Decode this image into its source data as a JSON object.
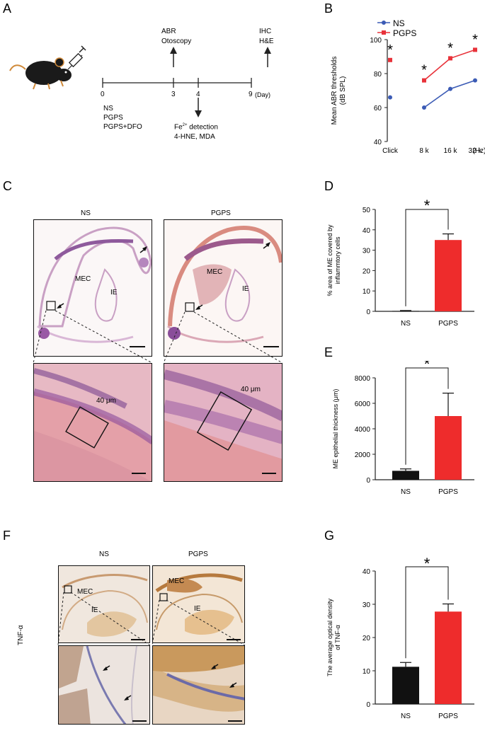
{
  "panels": {
    "A": "A",
    "B": "B",
    "C": "C",
    "D": "D",
    "E": "E",
    "F": "F",
    "G": "G"
  },
  "panel_a": {
    "top_labels": [
      {
        "lines": [
          "ABR",
          "Otoscopy"
        ]
      },
      {
        "lines": [
          "IHC",
          "H&E"
        ]
      }
    ],
    "ticks": [
      "0",
      "3",
      "4",
      "9"
    ],
    "day_unit": "(Day)",
    "groups": [
      "NS",
      "PGPS",
      "PGPS+DFO"
    ],
    "fe_label": "Fe",
    "fe_sup": "2+",
    "fe_rest": " detection",
    "markers": "4-HNE, MDA"
  },
  "panel_c": {
    "ns_title": "NS",
    "pgps_title": "PGPS",
    "mec": "MEC",
    "ie": "IE",
    "scale": "40 μm"
  },
  "panel_f": {
    "ns_title": "NS",
    "pgps_title": "PGPS",
    "mec": "MEC",
    "ie": "IE",
    "side_label": "TNF-α"
  },
  "chart_data": [
    {
      "id": "B",
      "type": "line",
      "categories": [
        "Click",
        "8 k",
        "16 k",
        "32 k"
      ],
      "x_unit": "(Hz)",
      "ylabel_lines": [
        "Mean ABR thresholds",
        "(dB SPL)"
      ],
      "ylim": [
        40,
        100
      ],
      "yticks": [
        "40",
        "60",
        "80",
        "100"
      ],
      "legend_position": "top-left",
      "series": [
        {
          "name": "NS",
          "color": "#3b5bb5",
          "values": [
            66,
            60,
            71,
            76
          ]
        },
        {
          "name": "PGPS",
          "color": "#e8323a",
          "values": [
            88,
            76,
            89,
            94
          ]
        }
      ],
      "line_segments_from_index": 1,
      "significance": [
        "*",
        "*",
        "*",
        "*"
      ]
    },
    {
      "id": "D",
      "type": "bar",
      "categories": [
        "NS",
        "PGPS"
      ],
      "values": [
        0.2,
        35
      ],
      "errors": [
        0.2,
        3
      ],
      "colors": [
        "#111111",
        "#ee2c2c"
      ],
      "ylabel_lines": [
        "% area of ME covered by",
        "inflammtory cells"
      ],
      "ylim": [
        0,
        50
      ],
      "yticks": [
        "0",
        "10",
        "20",
        "30",
        "40",
        "50"
      ],
      "significance": "*"
    },
    {
      "id": "E",
      "type": "bar",
      "categories": [
        "NS",
        "PGPS"
      ],
      "values": [
        700,
        5000
      ],
      "errors": [
        150,
        1800
      ],
      "colors": [
        "#111111",
        "#ee2c2c"
      ],
      "ylabel_lines": [
        "ME  epithelial  thickness (μm)"
      ],
      "ylim": [
        0,
        8000
      ],
      "yticks": [
        "0",
        "2000",
        "4000",
        "6000",
        "8000"
      ],
      "significance": "*"
    },
    {
      "id": "G",
      "type": "bar",
      "categories": [
        "NS",
        "PGPS"
      ],
      "values": [
        11.2,
        27.8
      ],
      "errors": [
        1.3,
        2.3
      ],
      "colors": [
        "#111111",
        "#ee2c2c"
      ],
      "ylabel_lines": [
        "The average optical density",
        "of TNF-α"
      ],
      "ylim": [
        0,
        40
      ],
      "yticks": [
        "0",
        "10",
        "20",
        "30",
        "40"
      ],
      "significance": "*"
    }
  ]
}
